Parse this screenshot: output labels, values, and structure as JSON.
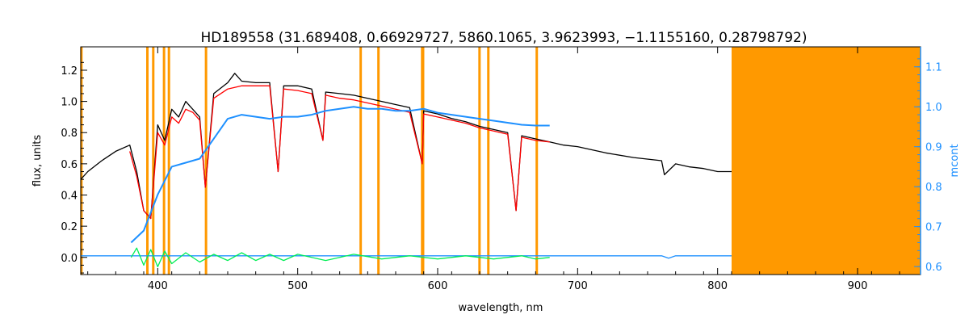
{
  "chart_data": {
    "type": "line",
    "title": "HD189558    (31.689408, 0.66929727, 5860.1065, 3.9623993, −1.1155160, 0.28798792)",
    "xlabel": "wavelength, nm",
    "ylabel": "flux, units",
    "ylabel_right": "mcont",
    "xlim": [
      345,
      945
    ],
    "ylim": [
      -0.11,
      1.35
    ],
    "ylim_right": [
      0.58,
      1.15
    ],
    "x_ticks": [
      400,
      500,
      600,
      700,
      800,
      900
    ],
    "y_ticks": [
      0.0,
      0.2,
      0.4,
      0.6,
      0.8,
      1.0,
      1.2
    ],
    "y_ticks_right": [
      0.6,
      0.7,
      0.8,
      0.9,
      1.0,
      1.1
    ],
    "x_tick_labels": [
      "400",
      "500",
      "600",
      "700",
      "800",
      "900"
    ],
    "y_tick_labels": [
      "0.0",
      "0.2",
      "0.4",
      "0.6",
      "0.8",
      "1.0",
      "1.2"
    ],
    "y_tick_labels_right": [
      "0.6",
      "0.7",
      "0.8",
      "0.9",
      "1.0",
      "1.1"
    ],
    "colors": {
      "observed": "#000000",
      "model": "#ff0000",
      "continuum": "#1e90ff",
      "residual": "#00ee55",
      "mask": "#ff9900",
      "right_axis": "#1e90ff"
    },
    "masked_region": [
      810,
      945
    ],
    "masked_lines": [
      345.5,
      392.6,
      396.8,
      404.5,
      408.0,
      434.5,
      545.0,
      557.7,
      588.9,
      589.6,
      629.9,
      636.2,
      670.8
    ],
    "series": [
      {
        "type": "line",
        "color": "#000000",
        "x": [
          345,
          350,
          360,
          370,
          380,
          385,
          390,
          395,
          400,
          405,
          410,
          415,
          420,
          425,
          430,
          434,
          440,
          450,
          455,
          460,
          470,
          480,
          486,
          490,
          500,
          510,
          518,
          520,
          530,
          540,
          550,
          560,
          570,
          580,
          589,
          590,
          600,
          610,
          620,
          630,
          640,
          650,
          656,
          660,
          670,
          680,
          690,
          700,
          720,
          740,
          760,
          762,
          770,
          780,
          790,
          800,
          810
        ],
        "y": [
          0.5,
          0.55,
          0.62,
          0.68,
          0.72,
          0.55,
          0.3,
          0.25,
          0.85,
          0.75,
          0.95,
          0.9,
          1.0,
          0.95,
          0.9,
          0.45,
          1.05,
          1.12,
          1.18,
          1.13,
          1.12,
          1.12,
          0.55,
          1.1,
          1.1,
          1.08,
          0.75,
          1.06,
          1.05,
          1.04,
          1.02,
          1.0,
          0.98,
          0.96,
          0.6,
          0.94,
          0.92,
          0.89,
          0.87,
          0.84,
          0.82,
          0.8,
          0.3,
          0.78,
          0.76,
          0.74,
          0.72,
          0.71,
          0.67,
          0.64,
          0.62,
          0.53,
          0.6,
          0.58,
          0.57,
          0.55,
          0.55
        ]
      },
      {
        "type": "line",
        "color": "#ff0000",
        "x": [
          380,
          385,
          390,
          395,
          400,
          405,
          410,
          415,
          420,
          425,
          430,
          434,
          440,
          450,
          460,
          470,
          480,
          486,
          490,
          500,
          510,
          518,
          520,
          530,
          540,
          550,
          560,
          570,
          580,
          589,
          590,
          600,
          610,
          620,
          630,
          640,
          650,
          656,
          660,
          670,
          680
        ],
        "y": [
          0.68,
          0.52,
          0.3,
          0.25,
          0.8,
          0.72,
          0.9,
          0.86,
          0.95,
          0.93,
          0.88,
          0.45,
          1.02,
          1.08,
          1.1,
          1.1,
          1.1,
          0.55,
          1.08,
          1.07,
          1.05,
          0.75,
          1.04,
          1.02,
          1.01,
          0.99,
          0.97,
          0.95,
          0.93,
          0.6,
          0.92,
          0.9,
          0.88,
          0.86,
          0.83,
          0.81,
          0.79,
          0.3,
          0.77,
          0.75,
          0.74
        ]
      },
      {
        "type": "line",
        "color": "#1e90ff",
        "axis": "right",
        "x": [
          381,
          390,
          400,
          410,
          420,
          430,
          440,
          450,
          460,
          470,
          480,
          490,
          500,
          510,
          520,
          530,
          540,
          550,
          560,
          570,
          580,
          590,
          600,
          610,
          620,
          630,
          640,
          650,
          660,
          670,
          680
        ],
        "y": [
          0.66,
          0.69,
          0.78,
          0.85,
          0.86,
          0.87,
          0.92,
          0.97,
          0.98,
          0.975,
          0.97,
          0.975,
          0.975,
          0.98,
          0.99,
          0.995,
          1.0,
          0.995,
          0.995,
          0.99,
          0.99,
          0.995,
          0.985,
          0.98,
          0.975,
          0.97,
          0.965,
          0.96,
          0.955,
          0.953,
          0.953
        ]
      },
      {
        "type": "line",
        "color": "#1e90ff",
        "x": [
          345,
          380,
          680,
          760,
          765,
          770,
          810
        ],
        "y": [
          0.01,
          0.01,
          0.01,
          0.01,
          -0.005,
          0.01,
          0.01
        ]
      },
      {
        "type": "line",
        "color": "#00ee55",
        "x": [
          381,
          385,
          390,
          395,
          400,
          405,
          410,
          420,
          430,
          440,
          450,
          460,
          470,
          480,
          490,
          500,
          520,
          540,
          560,
          580,
          600,
          620,
          640,
          660,
          670,
          680
        ],
        "y": [
          0.0,
          0.06,
          -0.05,
          0.05,
          -0.06,
          0.04,
          -0.04,
          0.03,
          -0.03,
          0.02,
          -0.02,
          0.03,
          -0.02,
          0.02,
          -0.02,
          0.02,
          -0.02,
          0.02,
          -0.01,
          0.01,
          -0.01,
          0.01,
          -0.01,
          0.01,
          -0.01,
          0.0
        ]
      }
    ]
  }
}
